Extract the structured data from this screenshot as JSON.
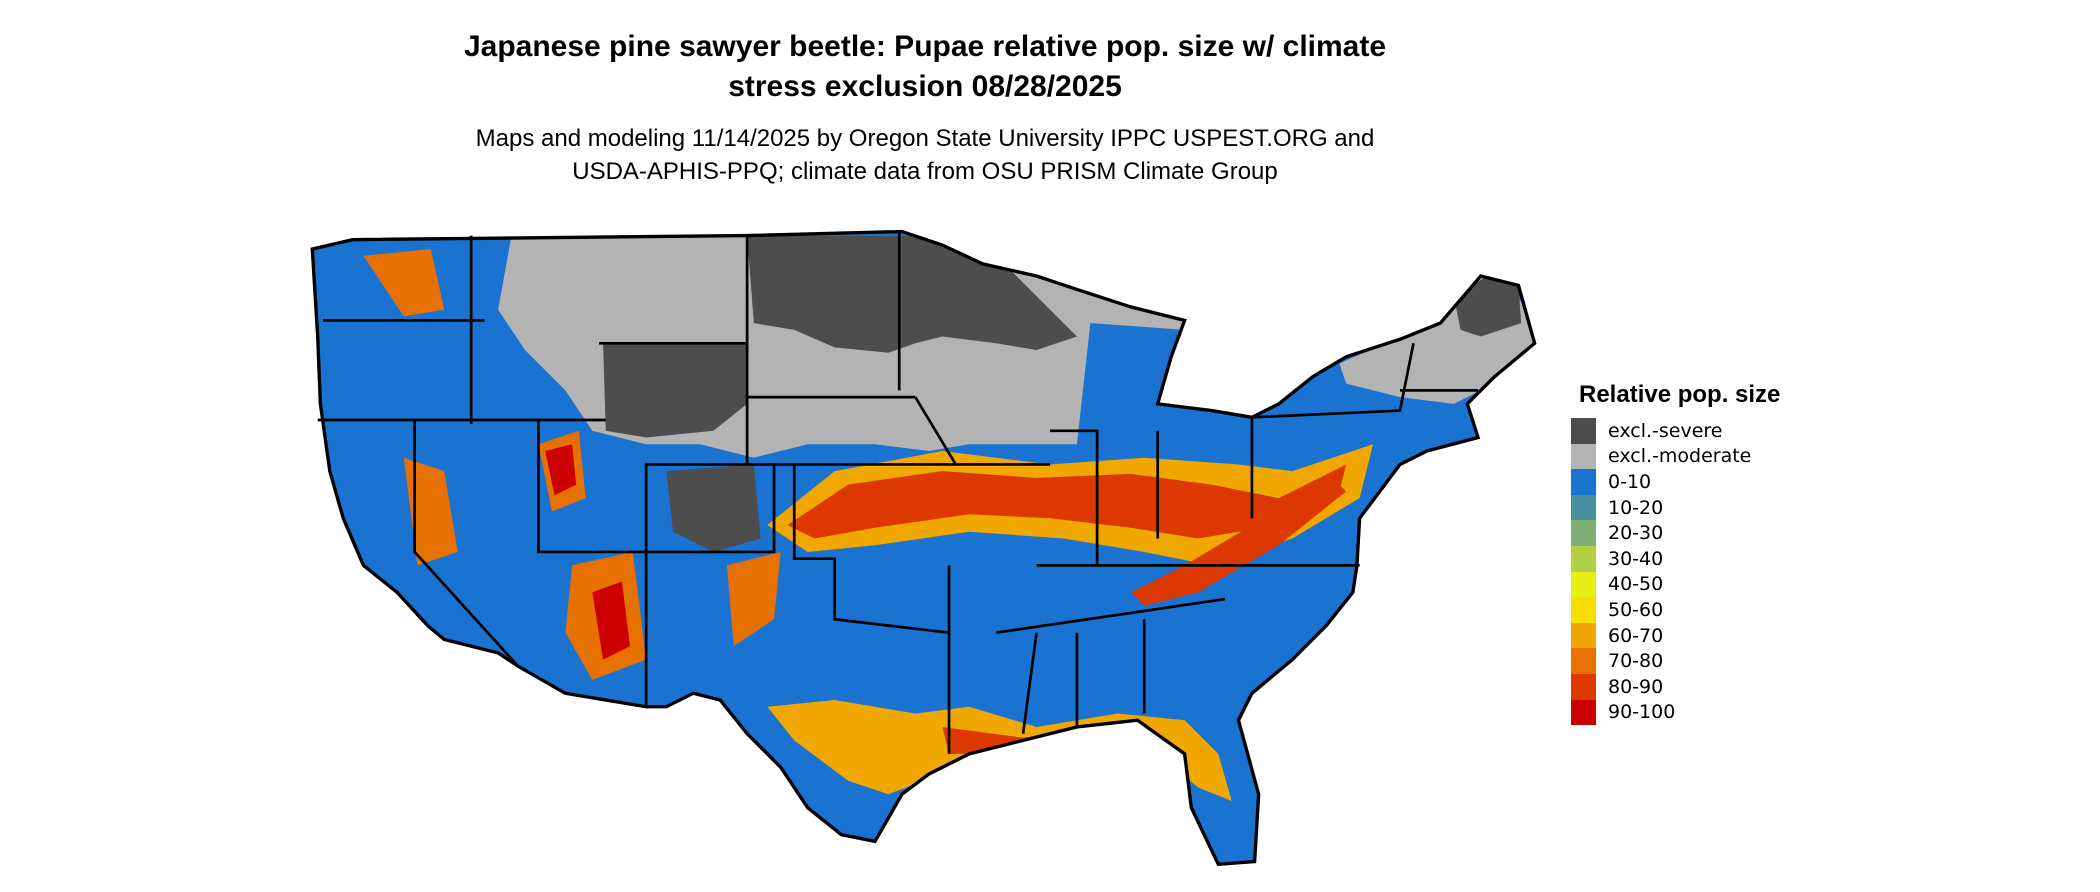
{
  "title": {
    "line1": "Japanese pine sawyer beetle: Pupae relative pop. size w/ climate",
    "line2": "stress exclusion 08/28/2025"
  },
  "subtitle": {
    "line1": "Maps and modeling 11/14/2025 by Oregon State University IPPC USPEST.ORG and",
    "line2": "USDA-APHIS-PPQ; climate data from OSU PRISM Climate Group"
  },
  "legend": {
    "title": "Relative pop. size",
    "items": [
      {
        "label": "excl.-severe",
        "color": "#4d4d4d"
      },
      {
        "label": "excl.-moderate",
        "color": "#b3b3b3"
      },
      {
        "label": "0-10",
        "color": "#1a73d0"
      },
      {
        "label": "10-20",
        "color": "#4a909c"
      },
      {
        "label": "20-30",
        "color": "#7dae74"
      },
      {
        "label": "30-40",
        "color": "#b3cf46"
      },
      {
        "label": "40-50",
        "color": "#e6f016"
      },
      {
        "label": "50-60",
        "color": "#f7e000"
      },
      {
        "label": "60-70",
        "color": "#f0a800"
      },
      {
        "label": "70-80",
        "color": "#e67000"
      },
      {
        "label": "80-90",
        "color": "#dc3800"
      },
      {
        "label": "90-100",
        "color": "#cc0000"
      }
    ]
  }
}
